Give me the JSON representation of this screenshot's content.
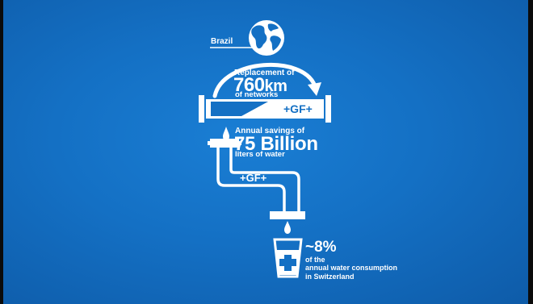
{
  "infographic": {
    "location_label": "Brazil",
    "replacement": {
      "line1": "Replacement of",
      "value": "760",
      "unit": "km",
      "line3": "of networks"
    },
    "pipe_brand": "+GF+",
    "savings": {
      "line1": "Annual savings of",
      "value": "75 Billion",
      "line3": "liters of water"
    },
    "tap_brand": "+GF+",
    "consumption": {
      "value": "~8%",
      "line1": "of the",
      "line2": "annual water consumption",
      "line3": "in Switzerland"
    }
  },
  "colors": {
    "background": "#1470c4",
    "foreground": "#ffffff"
  },
  "icons": [
    "globe-icon",
    "curved-arrow-icon",
    "pipe-icon",
    "water-drop-icon",
    "faucet-icon",
    "glass-icon",
    "plus-icon"
  ]
}
